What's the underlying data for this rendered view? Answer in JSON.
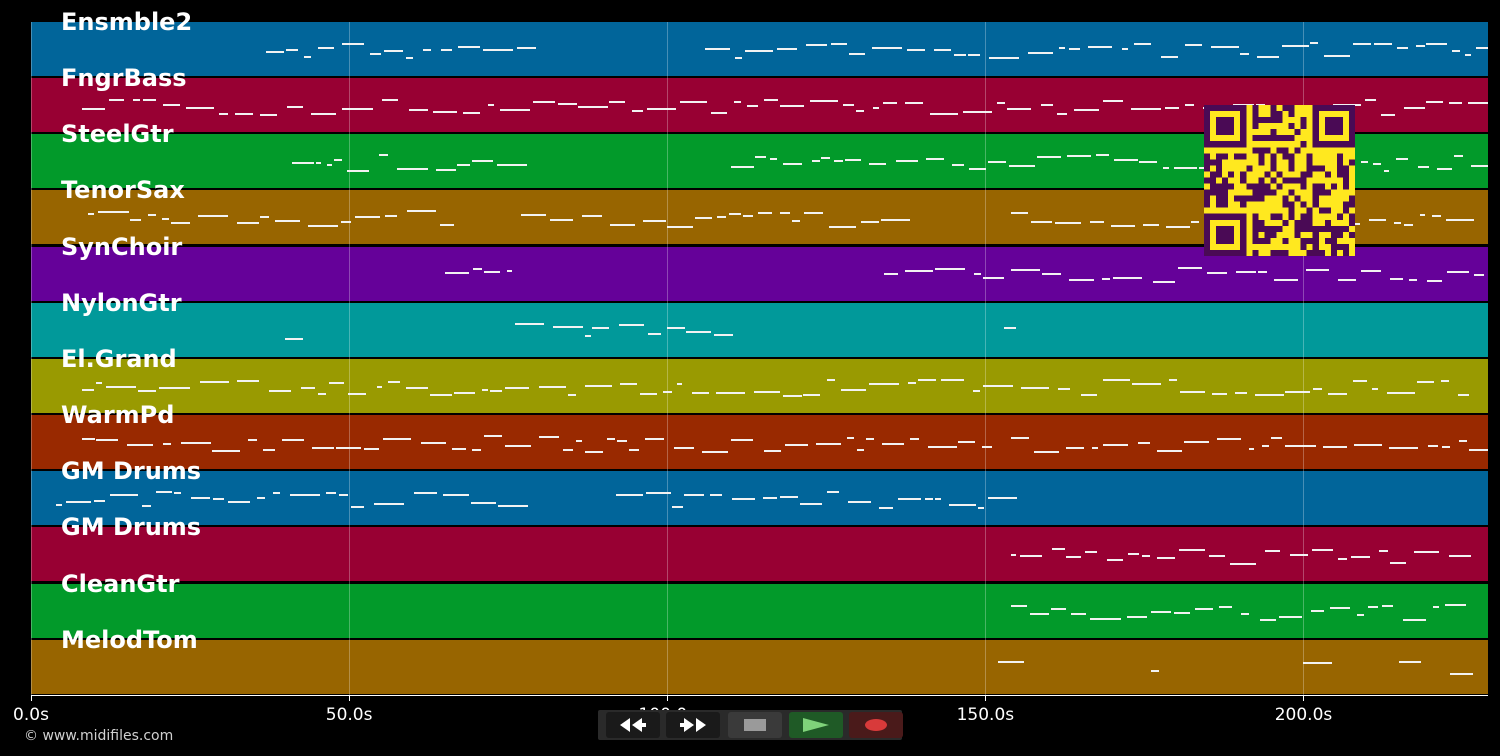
{
  "tracks": [
    {
      "label": "Ensmble2",
      "color": "#01659a"
    },
    {
      "label": "FngrBass",
      "color": "#980033"
    },
    {
      "label": "SteelGtr",
      "color": "#029a2a"
    },
    {
      "label": "TenorSax",
      "color": "#986500"
    },
    {
      "label": "SynChoir",
      "color": "#650199"
    },
    {
      "label": "NylonGtr",
      "color": "#01999a"
    },
    {
      "label": "El.Grand",
      "color": "#999a01"
    },
    {
      "label": "WarmPd",
      "color": "#992900"
    },
    {
      "label": "GM Drums",
      "color": "#01659a"
    },
    {
      "label": "GM Drums",
      "color": "#980033"
    },
    {
      "label": "CleanGtr",
      "color": "#029a2a"
    },
    {
      "label": "MelodTom",
      "color": "#986500"
    }
  ],
  "timeline": {
    "max_seconds": 229,
    "ticks": [
      {
        "seconds": 0,
        "label": "0.0s"
      },
      {
        "seconds": 50,
        "label": "50.0s"
      },
      {
        "seconds": 100,
        "label": "100.0s"
      },
      {
        "seconds": 150,
        "label": "150.0s"
      },
      {
        "seconds": 200,
        "label": "200.0s"
      }
    ]
  },
  "transport": {
    "rewind_icon": "rewind-icon",
    "fast_forward_icon": "fast-forward-icon",
    "stop_icon": "stop-icon",
    "play_icon": "play-icon",
    "record_icon": "record-icon"
  },
  "qr_code": {
    "color": "#ffe81f",
    "dark_color": "#4a0a55"
  },
  "footer": {
    "copyright": "© www.midifiles.com"
  }
}
